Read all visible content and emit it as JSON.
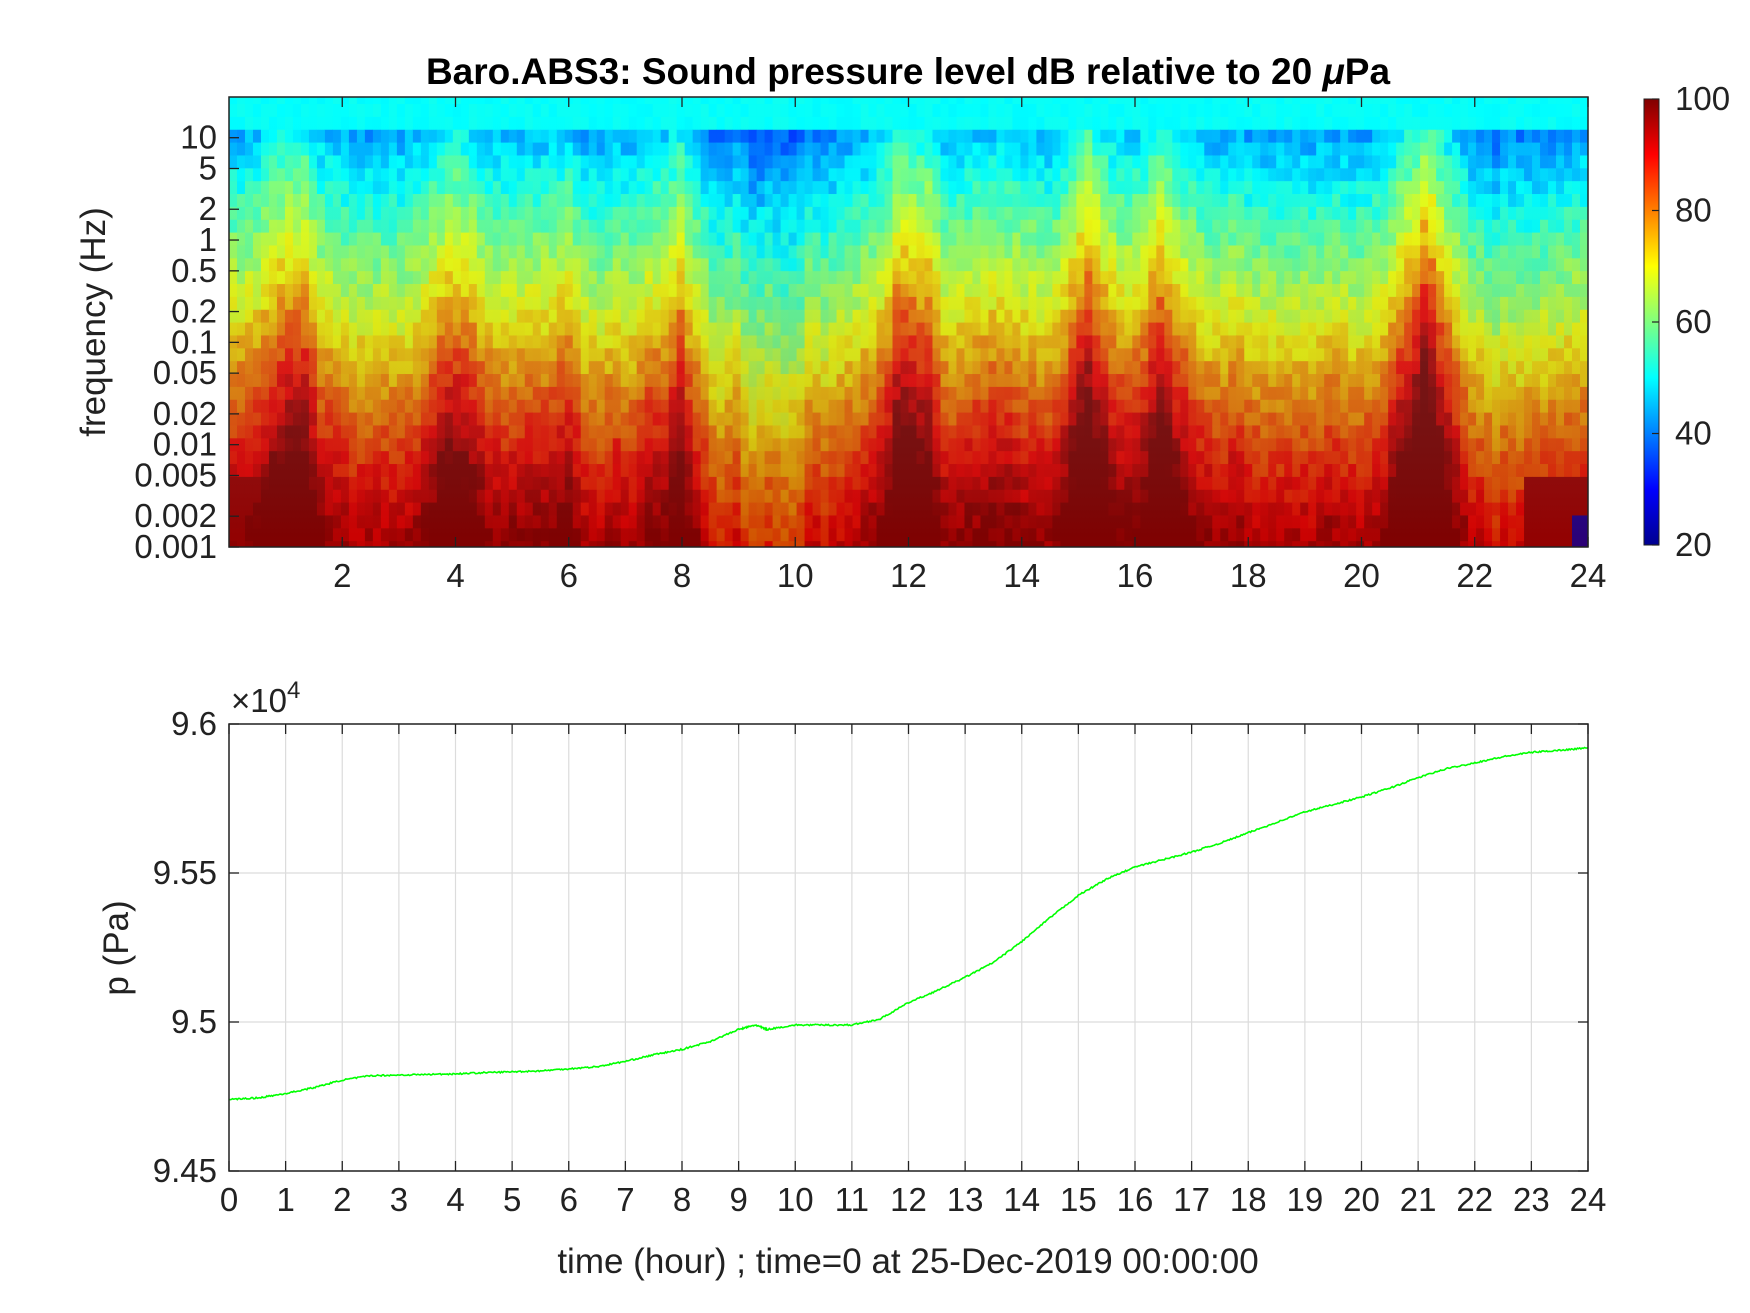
{
  "chart_data": [
    {
      "type": "heatmap",
      "title": "Baro.ABS3: Sound pressure level dB relative to 20 μPa",
      "title_prefix": "Baro.ABS3: Sound pressure level dB relative to 20 ",
      "title_mu": "μ",
      "title_suffix": "Pa",
      "ylabel": "frequency (Hz)",
      "xlabel": "",
      "y_scale": "log",
      "ylim": [
        0.001,
        25
      ],
      "xlim": [
        0,
        24
      ],
      "x_ticks": [
        2,
        4,
        6,
        8,
        10,
        12,
        14,
        16,
        18,
        20,
        22,
        24
      ],
      "y_ticks": [
        {
          "value": 10,
          "label": "10"
        },
        {
          "value": 5,
          "label": "5"
        },
        {
          "value": 2,
          "label": "2"
        },
        {
          "value": 1,
          "label": "1"
        },
        {
          "value": 0.5,
          "label": "0.5"
        },
        {
          "value": 0.2,
          "label": "0.2"
        },
        {
          "value": 0.1,
          "label": "0.1"
        },
        {
          "value": 0.05,
          "label": "0.05"
        },
        {
          "value": 0.02,
          "label": "0.02"
        },
        {
          "value": 0.01,
          "label": "0.01"
        },
        {
          "value": 0.005,
          "label": "0.005"
        },
        {
          "value": 0.002,
          "label": "0.002"
        },
        {
          "value": 0.001,
          "label": "0.001"
        }
      ],
      "colormap": "jet",
      "colorbar": {
        "range": [
          20,
          100
        ],
        "ticks": [
          20,
          40,
          60,
          80,
          100
        ]
      },
      "high_energy_bursts_hour": [
        1,
        4,
        12,
        15.2,
        16.5,
        21
      ],
      "quiet_periods_hour": [
        9,
        10,
        22.5
      ]
    },
    {
      "type": "line",
      "title": "",
      "xlabel": "time (hour) ; time=0 at 25-Dec-2019 00:00:00",
      "ylabel": "p (Pa)",
      "y_exponent_prefix": "×10",
      "y_exponent_power": "4",
      "xlim": [
        0,
        24
      ],
      "ylim": [
        94500,
        96000
      ],
      "grid": true,
      "line_color": "#00ff00",
      "x_ticks": [
        0,
        1,
        2,
        3,
        4,
        5,
        6,
        7,
        8,
        9,
        10,
        11,
        12,
        13,
        14,
        15,
        16,
        17,
        18,
        19,
        20,
        21,
        22,
        23,
        24
      ],
      "y_ticks": [
        {
          "value": 94500,
          "label": "9.45"
        },
        {
          "value": 95000,
          "label": "9.5"
        },
        {
          "value": 95500,
          "label": "9.55"
        },
        {
          "value": 96000,
          "label": "9.6"
        }
      ],
      "series": [
        {
          "x": [
            0,
            0.5,
            1,
            1.5,
            2,
            2.5,
            3,
            3.5,
            4,
            4.5,
            5,
            5.5,
            6,
            6.5,
            7,
            7.5,
            8,
            8.5,
            9,
            9.3,
            9.5,
            10,
            10.5,
            11,
            11.5,
            12,
            12.5,
            13,
            13.5,
            14,
            14.5,
            15,
            15.5,
            16,
            16.5,
            17,
            17.5,
            18,
            18.5,
            19,
            19.5,
            20,
            20.5,
            21,
            21.5,
            22,
            22.5,
            23,
            23.5,
            24
          ],
          "y": [
            94740,
            94745,
            94760,
            94780,
            94805,
            94820,
            94822,
            94824,
            94826,
            94830,
            94833,
            94836,
            94843,
            94850,
            94868,
            94890,
            94908,
            94935,
            94975,
            94990,
            94975,
            94990,
            94990,
            94990,
            95010,
            95065,
            95105,
            95150,
            95200,
            95270,
            95350,
            95425,
            95480,
            95520,
            95545,
            95570,
            95600,
            95635,
            95670,
            95705,
            95730,
            95755,
            95785,
            95820,
            95850,
            95870,
            95890,
            95905,
            95912,
            95920
          ]
        }
      ]
    }
  ]
}
